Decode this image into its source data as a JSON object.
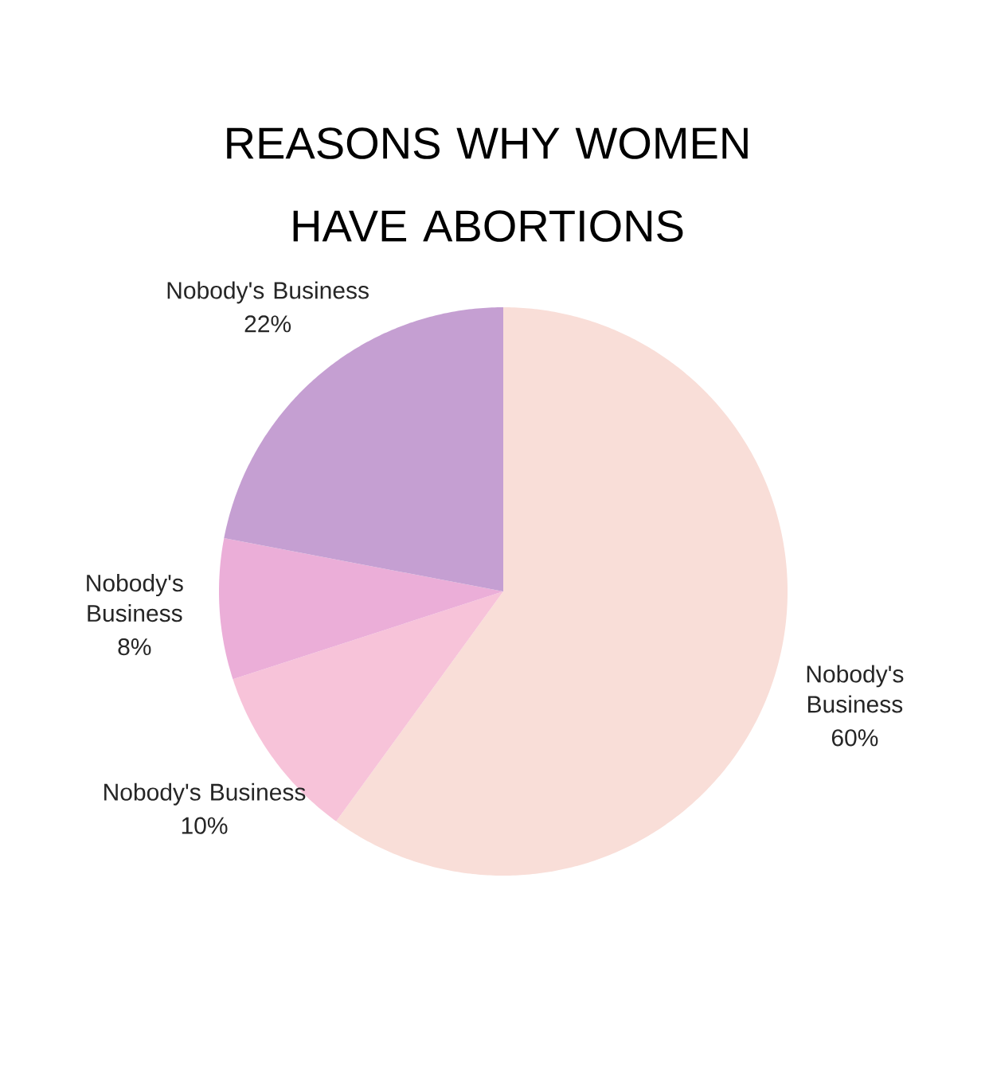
{
  "chart_data": {
    "type": "pie",
    "title": "REASONS WHY WOMEN HAVE ABORTIONS",
    "categories": [
      "Nobody's Business",
      "Nobody's Business",
      "Nobody's Business",
      "Nobody's Business"
    ],
    "values": [
      60,
      10,
      8,
      22
    ],
    "colors": [
      "#f9ded8",
      "#f7c3d9",
      "#ebaed8",
      "#c59fd2"
    ],
    "value_labels": [
      "60%",
      "10%",
      "8%",
      "22%"
    ]
  }
}
